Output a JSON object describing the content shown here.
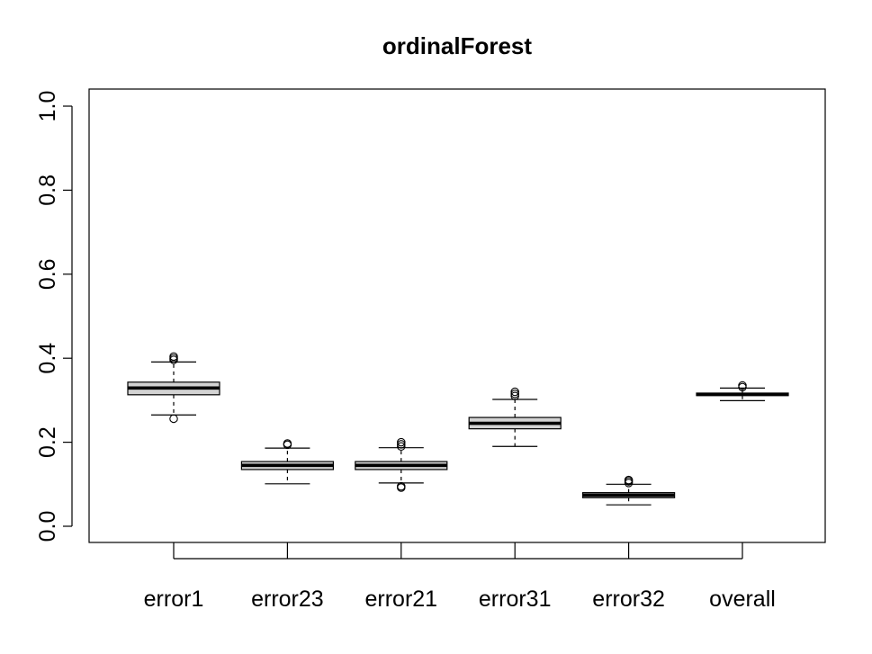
{
  "chart_data": {
    "type": "boxplot",
    "title": "ordinalForest",
    "xlabel": "",
    "ylabel": "",
    "ylim": [
      0,
      1
    ],
    "yticks": [
      "0.0",
      "0.2",
      "0.4",
      "0.6",
      "0.8",
      "1.0"
    ],
    "grid": false,
    "box_fill": "#d3d3d3",
    "categories": [
      "error1",
      "error23",
      "error21",
      "error31",
      "error32",
      "overall"
    ],
    "boxes": [
      {
        "whisker_low": 0.265,
        "q1": 0.313,
        "median": 0.329,
        "q3": 0.343,
        "whisker_high": 0.391,
        "outliers": [
          0.256,
          0.396,
          0.4,
          0.404
        ]
      },
      {
        "whisker_low": 0.101,
        "q1": 0.135,
        "median": 0.145,
        "q3": 0.154,
        "whisker_high": 0.186,
        "outliers": [
          0.194,
          0.197
        ]
      },
      {
        "whisker_low": 0.103,
        "q1": 0.135,
        "median": 0.145,
        "q3": 0.154,
        "whisker_high": 0.187,
        "outliers": [
          0.092,
          0.095,
          0.19,
          0.195,
          0.2
        ]
      },
      {
        "whisker_low": 0.19,
        "q1": 0.232,
        "median": 0.245,
        "q3": 0.259,
        "whisker_high": 0.302,
        "outliers": [
          0.31,
          0.315,
          0.32
        ]
      },
      {
        "whisker_low": 0.051,
        "q1": 0.068,
        "median": 0.074,
        "q3": 0.08,
        "whisker_high": 0.1,
        "outliers": [
          0.103,
          0.107,
          0.11
        ]
      },
      {
        "whisker_low": 0.299,
        "q1": 0.311,
        "median": 0.314,
        "q3": 0.317,
        "whisker_high": 0.329,
        "outliers": [
          0.331,
          0.335
        ]
      }
    ]
  }
}
